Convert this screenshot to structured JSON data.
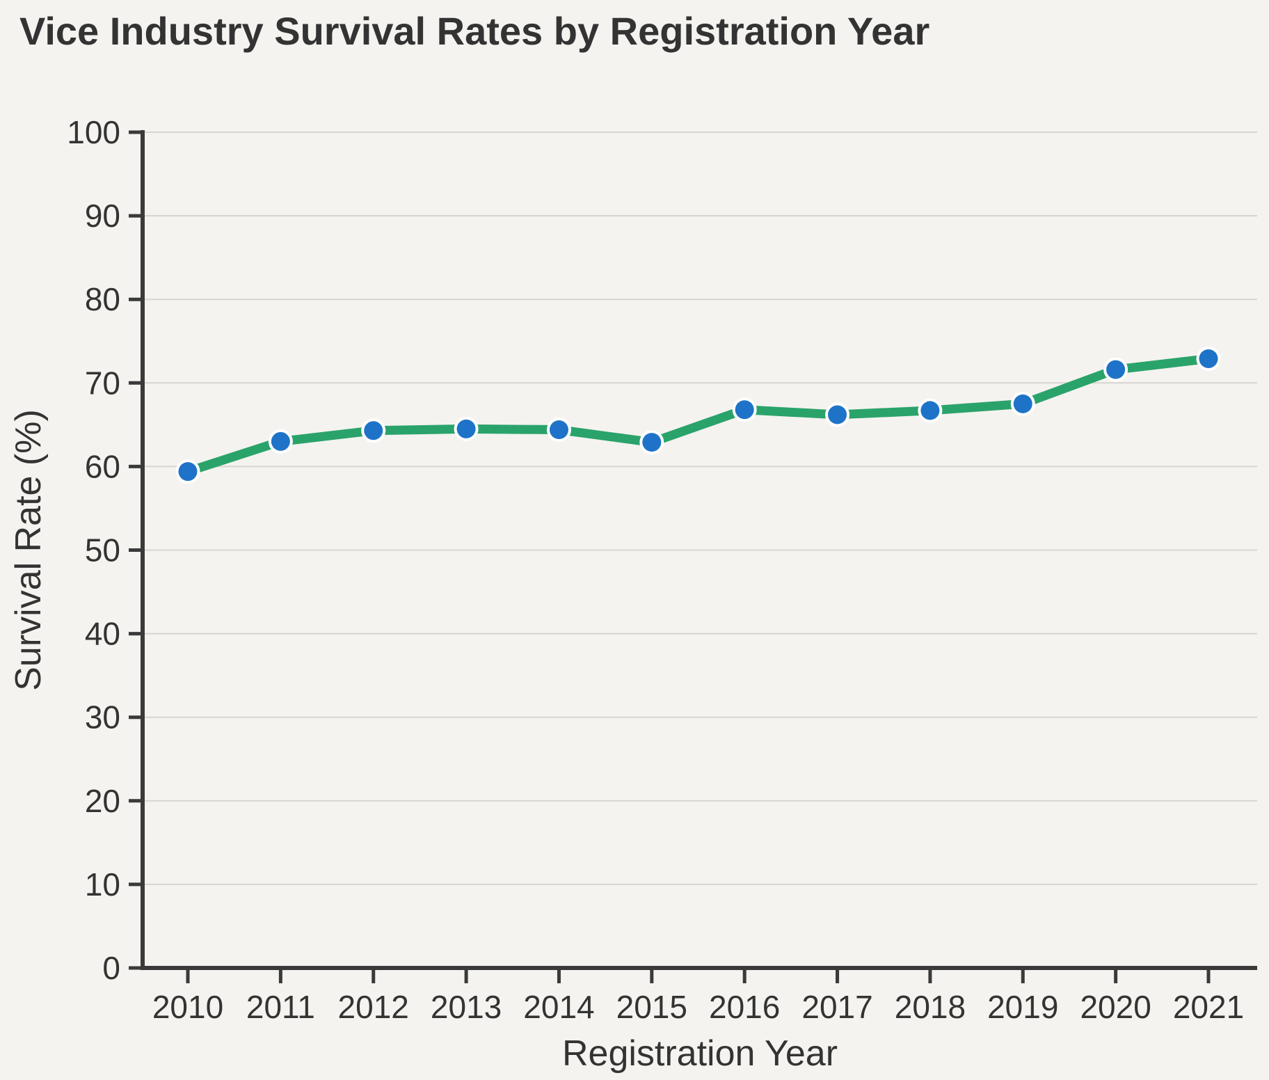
{
  "page": {
    "background_color": "#f4f3ef"
  },
  "chart_data": {
    "type": "line",
    "title": "Vice Industry Survival Rates by Registration Year",
    "xlabel": "Registration Year",
    "ylabel": "Survival Rate (%)",
    "categories": [
      "2010",
      "2011",
      "2012",
      "2013",
      "2014",
      "2015",
      "2016",
      "2017",
      "2018",
      "2019",
      "2020",
      "2021"
    ],
    "series": [
      {
        "name": "Survival Rate",
        "values": [
          59.4,
          63.0,
          64.3,
          64.5,
          64.4,
          62.9,
          66.8,
          66.2,
          66.7,
          67.5,
          71.6,
          72.9
        ]
      }
    ],
    "ylim": [
      0,
      100
    ],
    "yticks": [
      0,
      10,
      20,
      30,
      40,
      50,
      60,
      70,
      80,
      90,
      100
    ],
    "grid": true,
    "legend_position": "none",
    "line_color": "#2aa36b",
    "marker_color": "#1e73c8",
    "marker_outline_color": "#ffffff",
    "grid_color": "#d7d5d2",
    "axis_color": "#3a3a3a",
    "text_color": "#333333"
  }
}
